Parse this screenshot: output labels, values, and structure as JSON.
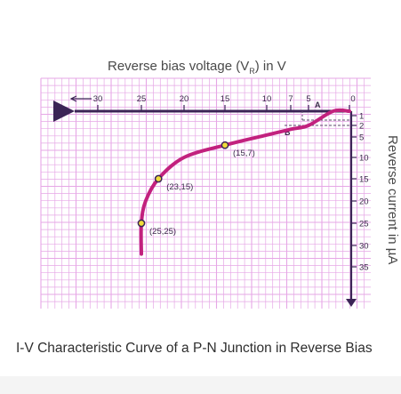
{
  "title": {
    "main": "Reverse bias voltage (V",
    "sub": "R",
    "tail": ") in V"
  },
  "y_label": {
    "main": "Reverse current in µA"
  },
  "caption": "I-V Characteristic Curve of a P-N Junction in Reverse Bias",
  "x_ticks": [
    "30",
    "25",
    "20",
    "15",
    "10",
    "7",
    "5",
    "0"
  ],
  "y_ticks": [
    "1",
    "2",
    "5",
    "10",
    "15",
    "20",
    "25",
    "30",
    "35"
  ],
  "point_labels": {
    "A": "A",
    "B": "B"
  },
  "colors": {
    "grid": "#e6a7e6",
    "axis": "#3b2456",
    "curve": "#c2217e",
    "marker": "#f0dc3a"
  },
  "chart_data": {
    "type": "line",
    "series": [
      {
        "x": [
          0,
          2,
          5,
          7,
          10,
          15,
          20,
          23,
          24.5,
          25,
          25
        ],
        "y": [
          0,
          0,
          2,
          3,
          4.5,
          7,
          10,
          15,
          20,
          25,
          32
        ]
      }
    ],
    "annotations": [
      {
        "x": 15,
        "y": 7,
        "label": "(15,7)"
      },
      {
        "x": 23,
        "y": 15,
        "label": "(23,15)"
      },
      {
        "x": 25,
        "y": 25,
        "label": "(25,25)"
      }
    ],
    "axes": {
      "x": "reverse voltage",
      "y": "reverse current"
    },
    "grid": true
  }
}
